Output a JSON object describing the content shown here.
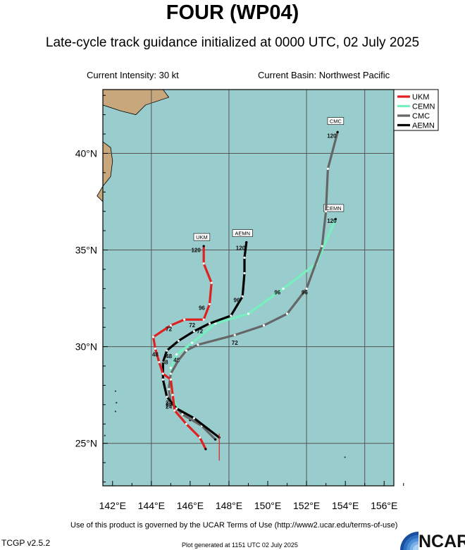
{
  "header": {
    "title": "FOUR (WP04)",
    "subtitle": "Late-cycle track guidance initialized at 0000 UTC, 02 July 2025",
    "intensity": "Current Intensity: 30 kt",
    "basin": "Current Basin: Northwest Pacific"
  },
  "footer": {
    "terms": "Use of this product is governed by the UCAR Terms of Use (http://www2.ucar.edu/terms-of-use)",
    "version": "TCGP v2.5.2",
    "generated": "Plot generated at 1151 UTC   02 July 2025",
    "logo_text": "NCAR"
  },
  "colors": {
    "ocean": "#99cccc",
    "land": "#c9a77c",
    "grid": "#555555",
    "UKM": "#e02020",
    "CEMN": "#77f0c0",
    "CMC": "#666666",
    "AEMN": "#000000"
  },
  "map_data": {
    "lon_range": [
      141.5,
      156.5
    ],
    "lat_range": [
      22.8,
      43.3
    ],
    "lon_ticks": [
      142,
      144,
      146,
      148,
      150,
      152,
      154,
      156
    ],
    "lon_tick_labels": [
      "142°E",
      "144°E",
      "146°E",
      "148°E",
      "150°E",
      "152°E",
      "154°E",
      "156°E"
    ],
    "lat_ticks": [
      25,
      30,
      35,
      40
    ],
    "lat_tick_labels": [
      "25°N",
      "30°N",
      "35°N",
      "40°N"
    ],
    "grid_lons": [
      144,
      148,
      152,
      155
    ],
    "grid_lats": [
      25,
      30,
      35,
      40
    ],
    "legend_entries": [
      "UKM",
      "CEMN",
      "CMC",
      "AEMN"
    ],
    "tracks": [
      {
        "name": "UKM",
        "points": [
          [
            146.8,
            24.7
          ],
          [
            146.5,
            25.3
          ],
          [
            145.8,
            26.0
          ],
          [
            145.2,
            26.7
          ],
          [
            145.1,
            27.5
          ],
          [
            145.0,
            28.3
          ],
          [
            144.6,
            28.6
          ],
          [
            144.4,
            29.2
          ],
          [
            144.2,
            29.9
          ],
          [
            144.1,
            30.5
          ],
          [
            145.0,
            31.1
          ],
          [
            145.7,
            31.4
          ],
          [
            146.7,
            31.4
          ],
          [
            147.0,
            32.2
          ],
          [
            147.1,
            33.3
          ],
          [
            146.7,
            34.3
          ],
          [
            146.7,
            35.2
          ]
        ],
        "hour_labels": [
          {
            "text": "48",
            "lon": 144.2,
            "lat": 29.5
          },
          {
            "text": "72",
            "lon": 144.9,
            "lat": 30.8
          },
          {
            "text": "96",
            "lon": 146.6,
            "lat": 31.9
          },
          {
            "text": "120",
            "lon": 146.3,
            "lat": 34.9
          }
        ],
        "tag": {
          "text": "UKM",
          "lon": 146.6,
          "lat": 35.6
        }
      },
      {
        "name": "CEMN",
        "points": [
          [
            146.0,
            26.2
          ],
          [
            145.4,
            26.7
          ],
          [
            145.1,
            27.4
          ],
          [
            145.0,
            28.1
          ],
          [
            145.0,
            28.9
          ],
          [
            145.3,
            29.6
          ],
          [
            146.1,
            30.2
          ],
          [
            147.3,
            31.2
          ],
          [
            149.0,
            31.7
          ],
          [
            150.8,
            33.0
          ],
          [
            152.5,
            34.3
          ],
          [
            153.5,
            36.6
          ]
        ],
        "hour_labels": [
          {
            "text": "24",
            "lon": 144.9,
            "lat": 26.9
          },
          {
            "text": "48",
            "lon": 144.9,
            "lat": 29.4
          },
          {
            "text": "72",
            "lon": 146.5,
            "lat": 30.7
          },
          {
            "text": "96",
            "lon": 150.5,
            "lat": 32.7
          },
          {
            "text": "120",
            "lon": 153.3,
            "lat": 36.4
          }
        ],
        "tag": {
          "text": "CEMN",
          "lon": 153.4,
          "lat": 37.1
        }
      },
      {
        "name": "CMC",
        "points": [
          [
            147.3,
            25.2
          ],
          [
            146.6,
            25.9
          ],
          [
            145.6,
            26.5
          ],
          [
            145.0,
            27.1
          ],
          [
            144.9,
            27.8
          ],
          [
            145.0,
            28.6
          ],
          [
            145.4,
            29.3
          ],
          [
            145.8,
            29.8
          ],
          [
            146.4,
            30.1
          ],
          [
            148.3,
            30.6
          ],
          [
            149.8,
            31.1
          ],
          [
            151.0,
            31.7
          ],
          [
            152.0,
            33.0
          ],
          [
            152.8,
            35.2
          ],
          [
            153.0,
            37.0
          ],
          [
            153.1,
            39.2
          ],
          [
            153.6,
            41.1
          ]
        ],
        "hour_labels": [
          {
            "text": "24",
            "lon": 144.9,
            "lat": 26.8
          },
          {
            "text": "48",
            "lon": 145.3,
            "lat": 29.2
          },
          {
            "text": "72",
            "lon": 148.3,
            "lat": 30.1
          },
          {
            "text": "96",
            "lon": 151.9,
            "lat": 32.7
          },
          {
            "text": "120",
            "lon": 153.3,
            "lat": 40.8
          }
        ],
        "tag": {
          "text": "CMC",
          "lon": 153.5,
          "lat": 41.6
        }
      },
      {
        "name": "AEMN",
        "points": [
          [
            147.5,
            25.3
          ],
          [
            146.2,
            26.3
          ],
          [
            145.3,
            26.8
          ],
          [
            144.8,
            27.4
          ],
          [
            144.6,
            28.3
          ],
          [
            144.6,
            29.2
          ],
          [
            144.8,
            29.8
          ],
          [
            145.4,
            30.3
          ],
          [
            146.2,
            30.8
          ],
          [
            147.0,
            31.2
          ],
          [
            148.1,
            31.6
          ],
          [
            148.7,
            32.6
          ],
          [
            148.8,
            33.8
          ],
          [
            148.8,
            34.6
          ],
          [
            148.9,
            35.4
          ]
        ],
        "hour_labels": [
          {
            "text": "24",
            "lon": 144.9,
            "lat": 27.0
          },
          {
            "text": "48",
            "lon": 144.7,
            "lat": 29.1
          },
          {
            "text": "72",
            "lon": 146.1,
            "lat": 31.0
          },
          {
            "text": "96",
            "lon": 148.4,
            "lat": 32.3
          },
          {
            "text": "120",
            "lon": 148.6,
            "lat": 35.0
          }
        ],
        "tag": {
          "text": "AEMN",
          "lon": 148.7,
          "lat": 35.8
        }
      }
    ]
  }
}
